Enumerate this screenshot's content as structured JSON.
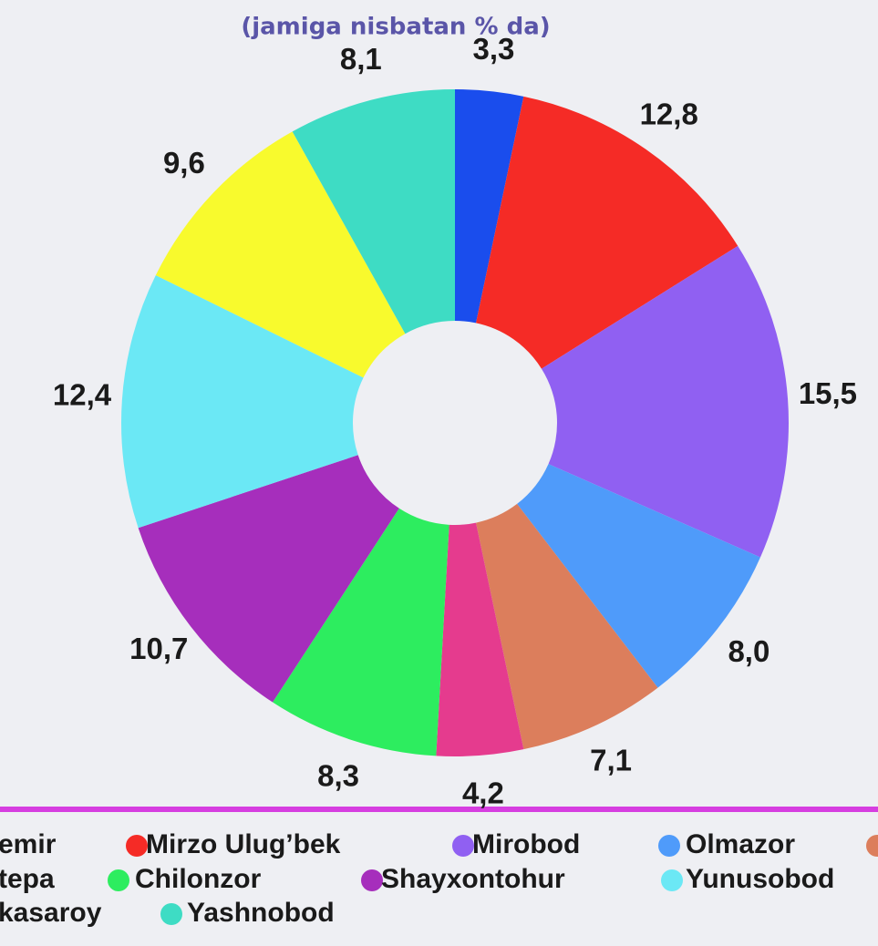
{
  "chart_data": {
    "type": "donut",
    "title": "(jamiga nisbatan % da)",
    "categories": [
      "emir",
      "Mirzo Ulug’bek",
      "Mirobod",
      "Olmazor",
      null,
      "tepa",
      "Chilonzor",
      "Shayxontohur",
      "Yunusobod",
      "kasaroy",
      "Yashnobod"
    ],
    "values": [
      3.3,
      12.8,
      15.5,
      8.0,
      7.1,
      4.2,
      8.3,
      10.7,
      12.4,
      9.6,
      8.1
    ],
    "value_labels": [
      "3,3",
      "12,8",
      "15,5",
      "8,0",
      "7,1",
      "4,2",
      "8,3",
      "10,7",
      "12,4",
      "9,6",
      "8,1"
    ],
    "colors": [
      "#1a4ded",
      "#f52b26",
      "#9060f2",
      "#4f9bfa",
      "#dc7e5c",
      "#e53b8e",
      "#2ded5f",
      "#a62ebc",
      "#6be8f5",
      "#f8fa2d",
      "#3edcc4"
    ]
  }
}
